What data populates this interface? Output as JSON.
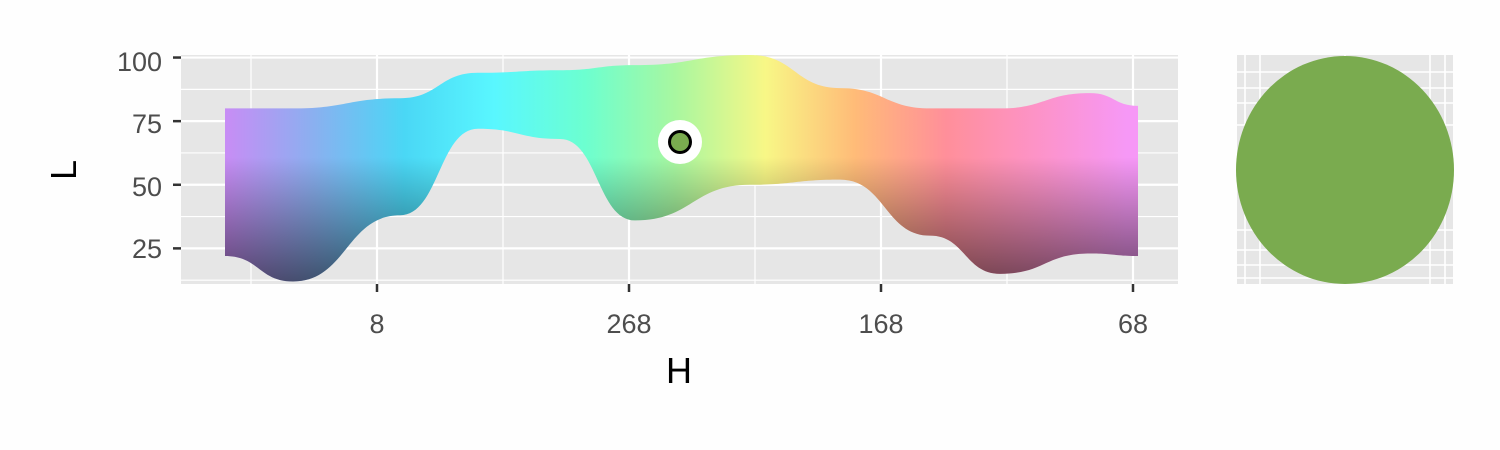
{
  "chart_data": [
    {
      "type": "area",
      "xlabel": "H",
      "ylabel": "L",
      "x_ticks": [
        "8",
        "268",
        "168",
        "68"
      ],
      "y_ticks": [
        25,
        50,
        75,
        100
      ],
      "ylim": [
        11,
        101
      ],
      "grid": true,
      "band_fill": "hue_gradient",
      "band_colors": [
        "#c98cf5",
        "#8ab0f0",
        "#4ad7f5",
        "#59f7ff",
        "#6cffd0",
        "#a8f7a0",
        "#f8f786",
        "#ffbb78",
        "#ff8f9a",
        "#fd93c7",
        "#f698f6"
      ],
      "band_upper_L": [
        80,
        80,
        84,
        94,
        95,
        97,
        101,
        88,
        80,
        80,
        86,
        81
      ],
      "band_lower_L": [
        22,
        12,
        38,
        72,
        68,
        36,
        50,
        52,
        30,
        15,
        23,
        22
      ],
      "selected_point": {
        "H": 290,
        "L": 68,
        "color": "#7aab4f"
      }
    },
    {
      "type": "scatter",
      "swatch_color": "#7aab4f",
      "grid": true
    }
  ]
}
